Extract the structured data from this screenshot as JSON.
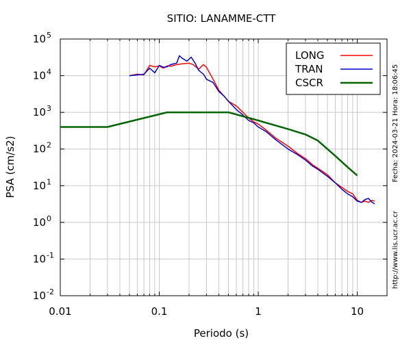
{
  "chart_data": {
    "type": "line",
    "title": "SITIO: LANAMME-CTT",
    "xlabel": "Periodo (s)",
    "ylabel": "PSA (cm/s2)",
    "x_scale": "log",
    "y_scale": "log",
    "xlim": [
      0.01,
      20
    ],
    "ylim": [
      0.01,
      100000
    ],
    "x_ticks": [
      {
        "value": 0.01,
        "label": "0.01"
      },
      {
        "value": 0.1,
        "label": "0.1"
      },
      {
        "value": 1,
        "label": "1"
      },
      {
        "value": 10,
        "label": "10"
      }
    ],
    "y_ticks": [
      {
        "value": 0.01,
        "base": "10",
        "exp": "-2"
      },
      {
        "value": 0.1,
        "base": "10",
        "exp": "-1"
      },
      {
        "value": 1,
        "base": "10",
        "exp": "0"
      },
      {
        "value": 10,
        "base": "10",
        "exp": "1"
      },
      {
        "value": 100,
        "base": "10",
        "exp": "2"
      },
      {
        "value": 1000,
        "base": "10",
        "exp": "3"
      },
      {
        "value": 10000,
        "base": "10",
        "exp": "4"
      },
      {
        "value": 100000,
        "base": "10",
        "exp": "5"
      }
    ],
    "grid": true,
    "legend_position": "top-right",
    "series": [
      {
        "name": "LONG",
        "color": "#ff0000",
        "width": 1.5,
        "x": [
          0.05,
          0.06,
          0.07,
          0.08,
          0.09,
          0.1,
          0.11,
          0.12,
          0.13,
          0.15,
          0.17,
          0.2,
          0.22,
          0.25,
          0.28,
          0.3,
          0.35,
          0.4,
          0.45,
          0.5,
          0.6,
          0.7,
          0.8,
          0.9,
          1.0,
          1.2,
          1.5,
          2.0,
          2.5,
          3.0,
          3.5,
          4.0,
          5.0,
          6.0,
          7.0,
          8.0,
          9.0,
          10.0,
          11.0,
          12.0,
          13.0,
          14.0,
          15.0
        ],
        "y": [
          10000,
          11000,
          10500,
          19000,
          17500,
          18500,
          16000,
          18500,
          18000,
          20000,
          21000,
          22000,
          20000,
          15000,
          20000,
          17000,
          8000,
          4000,
          2800,
          2000,
          1500,
          1000,
          700,
          550,
          480,
          330,
          200,
          120,
          75,
          55,
          38,
          30,
          20,
          12,
          9,
          7,
          6,
          4,
          3.5,
          3.8,
          3.5,
          4.0,
          3.8
        ]
      },
      {
        "name": "TRAN",
        "color": "#0000cc",
        "width": 1.5,
        "x": [
          0.05,
          0.06,
          0.07,
          0.08,
          0.09,
          0.1,
          0.11,
          0.12,
          0.13,
          0.15,
          0.16,
          0.17,
          0.19,
          0.21,
          0.23,
          0.25,
          0.28,
          0.3,
          0.35,
          0.4,
          0.45,
          0.5,
          0.6,
          0.7,
          0.8,
          0.9,
          1.0,
          1.2,
          1.5,
          2.0,
          2.5,
          3.0,
          3.5,
          4.0,
          5.0,
          6.0,
          7.0,
          8.0,
          9.0,
          10.0,
          11.0,
          12.0,
          13.0,
          14.0,
          15.0
        ],
        "y": [
          10000,
          10500,
          11000,
          16000,
          12000,
          19000,
          17000,
          17500,
          20000,
          22000,
          35000,
          30000,
          25000,
          32000,
          22000,
          14000,
          11000,
          8000,
          6500,
          3700,
          2800,
          2000,
          1200,
          850,
          600,
          520,
          400,
          300,
          180,
          100,
          70,
          50,
          35,
          28,
          18,
          12,
          8,
          6,
          5,
          3.8,
          3.5,
          4.2,
          4.5,
          3.6,
          3.2
        ]
      },
      {
        "name": "CSCR",
        "color": "#006400",
        "width": 2.5,
        "x": [
          0.01,
          0.03,
          0.12,
          0.5,
          1.0,
          2.0,
          3.0,
          4.0,
          6.0,
          8.0,
          10.0
        ],
        "y": [
          400,
          400,
          1000,
          1000,
          600,
          350,
          250,
          170,
          65,
          32,
          19
        ]
      }
    ],
    "annotations": [
      "Fecha: 2024-03-21 Hora: 18:06:45",
      "http://www.lis.ucr.ac.cr"
    ]
  }
}
